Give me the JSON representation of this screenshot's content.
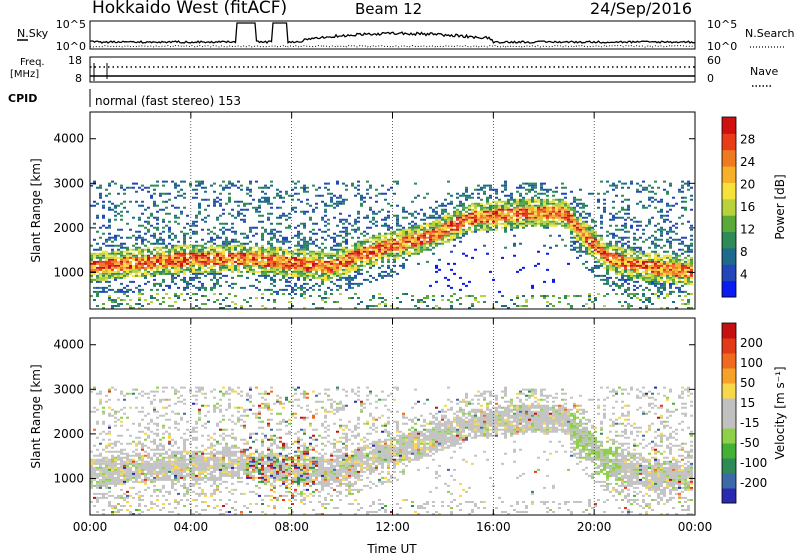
{
  "header": {
    "site": "Hokkaido West (fitACF)",
    "beam": "Beam 12",
    "date": "24/Sep/2016"
  },
  "top_strip": {
    "nsky_label": "N.Sky",
    "nsky_ticks": [
      "10^5",
      "10^0"
    ],
    "nsearch_label": "N.Search",
    "nsearch_ticks": [
      "10^5",
      "10^0"
    ],
    "freq_label_1": "Freq.",
    "freq_label_2": "[MHz]",
    "freq_ticks": [
      "18",
      "8"
    ],
    "nave_label": "Nave",
    "nave_ticks": [
      "60",
      "0"
    ],
    "cpid_label": "CPID",
    "cpid_value": "normal (fast stereo) 153"
  },
  "chart_data": [
    {
      "type": "heatmap",
      "name": "power",
      "ylabel": "Slant Range [km]",
      "y_ticks": [
        "4000",
        "3000",
        "2000",
        "1000"
      ],
      "y_tick_values": [
        4000,
        3000,
        2000,
        1000
      ],
      "ylim": [
        180,
        4600
      ],
      "xlim": [
        "00:00",
        "24:00"
      ],
      "colorbar_label": "Power [dB]",
      "colorbar_ticks": [
        "28",
        "24",
        "20",
        "16",
        "12",
        "8",
        "4"
      ],
      "colorbar_colors": [
        "#0a1cf0",
        "#2347b8",
        "#1d6a8c",
        "#2f8a58",
        "#5aaa3a",
        "#b8d23c",
        "#f6e23a",
        "#f6b02a",
        "#f07a20",
        "#e83c18",
        "#d01010"
      ],
      "grid": true
    },
    {
      "type": "heatmap",
      "name": "velocity",
      "ylabel": "Slant Range [km]",
      "y_ticks": [
        "4000",
        "3000",
        "2000",
        "1000"
      ],
      "y_tick_values": [
        4000,
        3000,
        2000,
        1000
      ],
      "ylim": [
        180,
        4600
      ],
      "xlabel": "Time UT",
      "x_ticks": [
        "00:00",
        "04:00",
        "08:00",
        "12:00",
        "16:00",
        "20:00",
        "00:00"
      ],
      "colorbar_label": "Velocity [m s⁻¹]",
      "colorbar_ticks": [
        "200",
        "100",
        "50",
        "15",
        "-15",
        "-50",
        "-100",
        "-200"
      ],
      "colorbar_colors": [
        "#2a2ab0",
        "#3c6aa8",
        "#2f8a58",
        "#44b035",
        "#8fd04a",
        "#c0c0c0",
        "#c0c0c0",
        "#f6d84a",
        "#f6a228",
        "#ef6a1e",
        "#e03a18",
        "#c41010"
      ],
      "grid": true
    }
  ]
}
